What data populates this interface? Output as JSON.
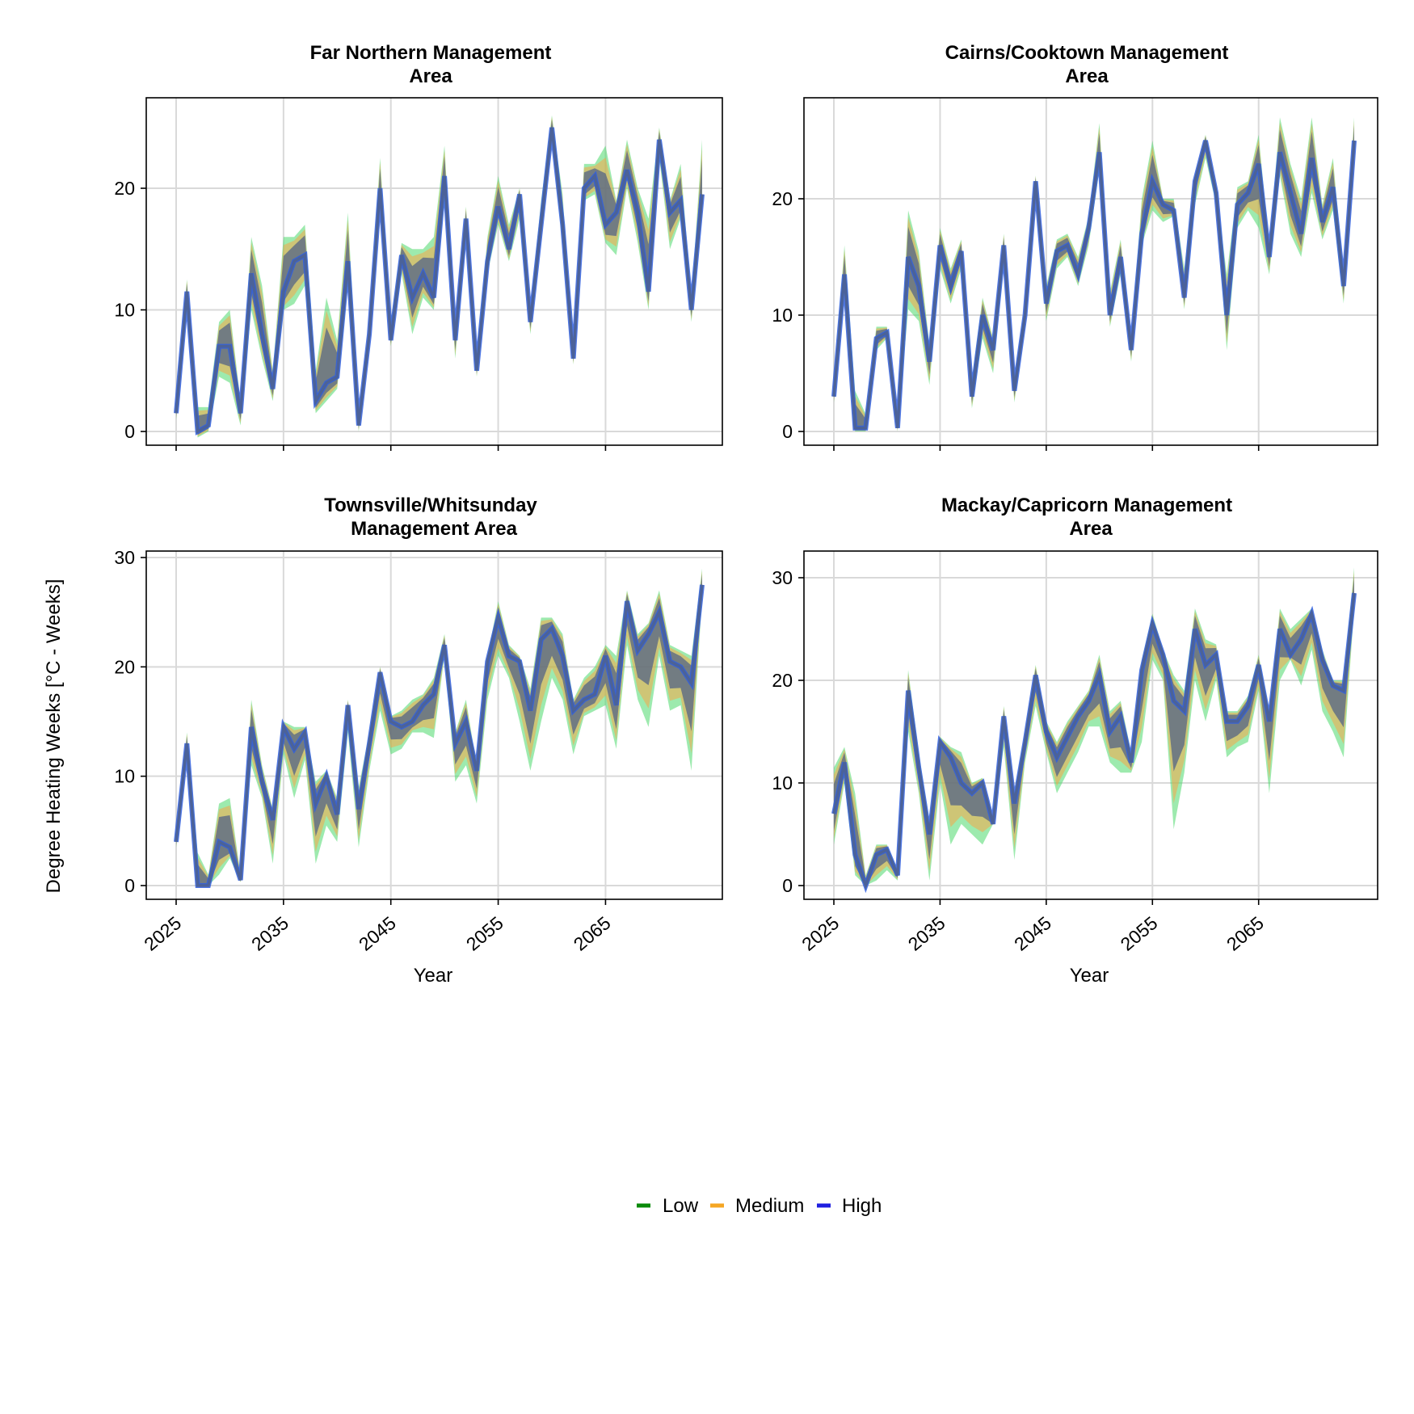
{
  "figure": {
    "ylabel": "Degree Heating Weeks [°C - Weeks]",
    "xlabel": "Year"
  },
  "legend": [
    {
      "name": "Low",
      "color": "#0a8a0a"
    },
    {
      "name": "Medium",
      "color": "#f5a623"
    },
    {
      "name": "High",
      "color": "#1f1fe0"
    }
  ],
  "colors": {
    "low_band": "#4cd96b",
    "medium_band": "#ff9f3d",
    "high_band": "#4b5d88",
    "mean_line": "#4e6292",
    "mean_line_high": "#2f5fe0"
  },
  "chart_data": [
    {
      "type": "area",
      "title": "Far Northern Management\nArea",
      "x": [
        2025,
        2026,
        2027,
        2028,
        2029,
        2030,
        2031,
        2032,
        2033,
        2034,
        2035,
        2036,
        2037,
        2038,
        2039,
        2040,
        2041,
        2042,
        2043,
        2044,
        2045,
        2046,
        2047,
        2048,
        2049,
        2050,
        2051,
        2052,
        2053,
        2054,
        2055,
        2056,
        2057,
        2058,
        2059,
        2060,
        2061,
        2062,
        2063,
        2064,
        2065,
        2066,
        2067,
        2068,
        2069,
        2070,
        2071,
        2072,
        2073,
        2074
      ],
      "mean": [
        1.5,
        11.5,
        0,
        0.5,
        7,
        7,
        1.5,
        13,
        8,
        3.5,
        11.5,
        14,
        14.5,
        2.5,
        4,
        4.5,
        14,
        0.5,
        8,
        20,
        7.5,
        14.5,
        11,
        13,
        11,
        21,
        7.5,
        17.5,
        5,
        14,
        18.5,
        15,
        19.5,
        9,
        17,
        25,
        17,
        6,
        20,
        21,
        17,
        18,
        21.5,
        18,
        11.5,
        24,
        18,
        19,
        10,
        19.5
      ],
      "lower": [
        1,
        10,
        -0.5,
        0,
        4.5,
        4,
        0.5,
        10,
        6,
        2.5,
        10,
        10.5,
        12,
        1.5,
        2.5,
        3.5,
        12,
        0,
        7,
        18.5,
        7,
        13,
        8,
        11,
        10,
        19,
        6,
        16,
        4.5,
        13,
        17,
        14,
        17.5,
        8,
        16,
        24,
        15.5,
        5.5,
        19,
        19.5,
        15.5,
        14.5,
        20,
        15.5,
        10,
        22.5,
        15,
        17.5,
        9,
        18
      ],
      "upper": [
        3,
        12.5,
        2,
        2,
        9,
        10,
        2.5,
        16,
        12,
        5,
        16,
        16,
        17,
        5,
        11,
        7.5,
        18,
        1.5,
        9,
        22.5,
        9,
        15.5,
        15,
        15,
        16,
        23.5,
        8.5,
        18.5,
        6,
        16,
        21,
        17,
        20,
        10,
        19,
        26,
        19.5,
        6.5,
        22,
        22,
        23.5,
        19,
        24,
        20,
        17.5,
        25,
        19,
        22,
        11,
        24
      ],
      "xlim": [
        2025,
        2074
      ],
      "ylim": [
        0,
        25
      ],
      "yticks": [
        0,
        10,
        20
      ],
      "xticks": [
        2025,
        2035,
        2045,
        2055,
        2065
      ]
    },
    {
      "type": "area",
      "title": "Cairns/Cooktown Management\nArea",
      "x": [
        2025,
        2026,
        2027,
        2028,
        2029,
        2030,
        2031,
        2032,
        2033,
        2034,
        2035,
        2036,
        2037,
        2038,
        2039,
        2040,
        2041,
        2042,
        2043,
        2044,
        2045,
        2046,
        2047,
        2048,
        2049,
        2050,
        2051,
        2052,
        2053,
        2054,
        2055,
        2056,
        2057,
        2058,
        2059,
        2060,
        2061,
        2062,
        2063,
        2064,
        2065,
        2066,
        2067,
        2068,
        2069,
        2070,
        2071,
        2072,
        2073,
        2074
      ],
      "mean": [
        3,
        13.5,
        0.3,
        0.3,
        8,
        8.5,
        0.3,
        15,
        12.5,
        6,
        16,
        12.5,
        15.5,
        3,
        10,
        7,
        16,
        3.5,
        10,
        21.5,
        11,
        15.5,
        16,
        13.5,
        17.5,
        24,
        10,
        15,
        7,
        17,
        21.5,
        19.5,
        19,
        11.5,
        21.5,
        25,
        20.5,
        10,
        19.5,
        20.5,
        23,
        15,
        24,
        20.5,
        17,
        23.5,
        18,
        21,
        12.5,
        25
      ],
      "lower": [
        2.5,
        12,
        0,
        0,
        7,
        8,
        0,
        10.5,
        9.5,
        4,
        14,
        11,
        14,
        2,
        8,
        5,
        14.5,
        2.5,
        9,
        20.5,
        9.5,
        14,
        15,
        12.5,
        16,
        22.5,
        9,
        13.5,
        6,
        16,
        19,
        18,
        18.5,
        10.5,
        19.5,
        23.5,
        19.5,
        7,
        17.5,
        19,
        17.5,
        13.5,
        22,
        17,
        15,
        20.5,
        16.5,
        19,
        11,
        24
      ],
      "upper": [
        4,
        16,
        3.5,
        1.5,
        9,
        9,
        1,
        19,
        15.5,
        7.5,
        17.5,
        14,
        16.5,
        4.5,
        11.5,
        8,
        17,
        4.5,
        11,
        22,
        12.5,
        16.5,
        17,
        15,
        18.5,
        26.5,
        12,
        16.5,
        8,
        20,
        25,
        20,
        20,
        14,
        22,
        25.5,
        21,
        13.5,
        21,
        21.5,
        25.5,
        16,
        27,
        23,
        20,
        27,
        19.5,
        23.5,
        13.5,
        27
      ],
      "xlim": [
        2025,
        2074
      ],
      "ylim": [
        0,
        27
      ],
      "yticks": [
        0,
        10,
        20
      ],
      "xticks": [
        2025,
        2035,
        2045,
        2055,
        2065
      ]
    },
    {
      "type": "area",
      "title": "Townsville/Whitsunday\nManagement Area",
      "x": [
        2025,
        2026,
        2027,
        2028,
        2029,
        2030,
        2031,
        2032,
        2033,
        2034,
        2035,
        2036,
        2037,
        2038,
        2039,
        2040,
        2041,
        2042,
        2043,
        2044,
        2045,
        2046,
        2047,
        2048,
        2049,
        2050,
        2051,
        2052,
        2053,
        2054,
        2055,
        2056,
        2057,
        2058,
        2059,
        2060,
        2061,
        2062,
        2063,
        2064,
        2065,
        2066,
        2067,
        2068,
        2069,
        2070,
        2071,
        2072,
        2073,
        2074
      ],
      "mean": [
        4,
        13,
        0,
        0,
        4,
        3.5,
        0.5,
        14.5,
        9.5,
        6,
        14.5,
        12.5,
        14,
        7.5,
        10,
        6.5,
        16.5,
        7,
        13,
        19.5,
        15,
        14.5,
        15,
        16.5,
        17.5,
        22,
        13,
        15,
        10.5,
        20.5,
        24.5,
        21,
        20.5,
        16,
        22.5,
        23.5,
        21,
        16,
        17,
        17.5,
        21,
        16.5,
        26,
        21.5,
        23,
        25,
        20.5,
        20,
        18.5,
        27.5
      ],
      "lower": [
        3.5,
        12,
        0,
        0,
        1,
        2.5,
        0.3,
        11,
        8,
        2,
        12,
        8,
        11.5,
        2,
        5.5,
        4,
        14,
        3.5,
        10.5,
        16,
        12,
        12.5,
        14,
        14,
        13.5,
        21,
        9.5,
        11,
        7.5,
        17,
        21,
        19,
        15,
        10.5,
        15,
        19,
        17,
        12,
        15.5,
        16,
        16.5,
        12.5,
        22,
        17,
        14.5,
        21,
        16,
        16.5,
        10.5,
        26.5
      ],
      "upper": [
        4.5,
        14,
        3,
        1,
        7.5,
        8,
        1,
        17,
        11,
        7,
        15,
        14.5,
        14.5,
        9.5,
        10.5,
        8,
        17,
        9,
        14,
        20,
        15.5,
        16,
        17,
        17.5,
        19,
        23,
        14,
        17,
        11,
        21,
        26,
        22,
        21,
        18,
        24.5,
        24.5,
        23,
        17,
        19,
        20,
        22,
        21,
        27,
        23,
        24,
        27,
        22,
        21.5,
        21,
        29
      ],
      "xlim": [
        2025,
        2074
      ],
      "ylim": [
        0,
        30
      ],
      "yticks": [
        0,
        10,
        20,
        30
      ],
      "xticks": [
        2025,
        2035,
        2045,
        2055,
        2065
      ]
    },
    {
      "type": "area",
      "title": "Mackay/Capricorn Management\nArea",
      "x": [
        2025,
        2026,
        2027,
        2028,
        2029,
        2030,
        2031,
        2032,
        2033,
        2034,
        2035,
        2036,
        2037,
        2038,
        2039,
        2040,
        2041,
        2042,
        2043,
        2044,
        2045,
        2046,
        2047,
        2048,
        2049,
        2050,
        2051,
        2052,
        2053,
        2054,
        2055,
        2056,
        2057,
        2058,
        2059,
        2060,
        2061,
        2062,
        2063,
        2064,
        2065,
        2066,
        2067,
        2068,
        2069,
        2070,
        2071,
        2072,
        2073,
        2074
      ],
      "mean": [
        7,
        12,
        3,
        0,
        3,
        3.5,
        1,
        19,
        11.5,
        5,
        14,
        12.5,
        10,
        9,
        10,
        6,
        16.5,
        8,
        14,
        20.5,
        15,
        12.5,
        14.5,
        16.5,
        18,
        20.5,
        15,
        16.5,
        12,
        21,
        25.5,
        22.5,
        18,
        17,
        25,
        21.5,
        22.5,
        16,
        16,
        17.5,
        21.5,
        16,
        25,
        22.5,
        24,
        26.5,
        22,
        19.5,
        19,
        28.5
      ],
      "lower": [
        4,
        10,
        1,
        0,
        0.5,
        1.5,
        0.5,
        15,
        9,
        0.5,
        10,
        4,
        6,
        5,
        4,
        6,
        13.5,
        2.5,
        12,
        17.5,
        13,
        9,
        11,
        13,
        15.5,
        15.5,
        12,
        11,
        11,
        14,
        22,
        20,
        5.5,
        11,
        20,
        16,
        20,
        12.5,
        13.5,
        14,
        19,
        9,
        20,
        22,
        19.5,
        23,
        17,
        15,
        12.5,
        27
      ],
      "upper": [
        11.5,
        13.5,
        9,
        1,
        4,
        4,
        1.5,
        21,
        13,
        6,
        14.5,
        13.5,
        13,
        10,
        10.5,
        6.5,
        17.5,
        9,
        15,
        21.5,
        16,
        14,
        16,
        17.5,
        19,
        22.5,
        17,
        18,
        13,
        22,
        26.5,
        23,
        20.5,
        19,
        27,
        24,
        23.5,
        17,
        17,
        18.5,
        22.5,
        17,
        27,
        25,
        26,
        27,
        23,
        20,
        20,
        31
      ],
      "xlim": [
        2025,
        2074
      ],
      "ylim": [
        0,
        31
      ],
      "yticks": [
        0,
        10,
        20,
        30
      ],
      "xticks": [
        2025,
        2035,
        2045,
        2055,
        2065
      ]
    }
  ]
}
